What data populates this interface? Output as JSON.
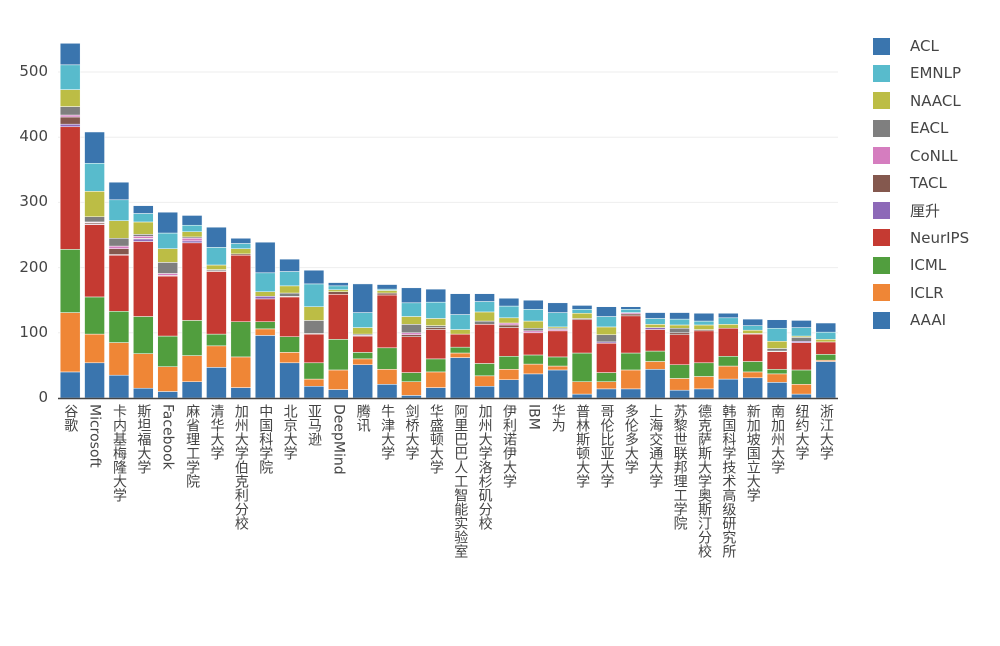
{
  "chart_data": {
    "type": "bar",
    "stacked": true,
    "title": "",
    "xlabel": "",
    "ylabel": "",
    "ylim": [
      0,
      570
    ],
    "yticks": [
      0,
      100,
      200,
      300,
      400,
      500
    ],
    "grid": true,
    "legend_position": "right",
    "categories": [
      "谷歌",
      "Microsoft",
      "卡内基梅隆大学",
      "斯坦福大学",
      "Facebook",
      "麻省理工学院",
      "清华大学",
      "加州大学伯克利分校",
      "中国科学院",
      "北京大学",
      "亚马逊",
      "DeepMind",
      "腾讯",
      "牛津大学",
      "剑桥大学",
      "华盛顿大学",
      "阿里巴巴人工智能实验室",
      "加州大学洛杉矶分校",
      "伊利诺伊大学",
      "IBM",
      "华为",
      "普林斯顿大学",
      "哥伦比亚大学",
      "多伦多大学",
      "上海交通大学",
      "苏黎世联邦理工学院",
      "德克萨斯大学奥斯汀分校",
      "韩国科学技术高级研究所",
      "新加坡国立大学",
      "南加州大学",
      "纽约大学",
      "浙江大学"
    ],
    "series": [
      {
        "name": "AAAI",
        "color": "#3a75ae",
        "values": [
          40,
          54,
          35,
          15,
          10,
          25,
          47,
          16,
          96,
          54,
          18,
          13,
          51,
          21,
          4,
          16,
          62,
          18,
          28,
          37,
          43,
          6,
          14,
          14,
          44,
          12,
          14,
          29,
          31,
          24,
          6,
          56
        ]
      },
      {
        "name": "ICLR",
        "color": "#ef8636",
        "values": [
          91,
          44,
          50,
          53,
          38,
          40,
          33,
          47,
          10,
          16,
          11,
          30,
          9,
          23,
          21,
          24,
          7,
          16,
          16,
          15,
          6,
          19,
          11,
          29,
          12,
          18,
          19,
          20,
          9,
          13,
          15,
          2
        ]
      },
      {
        "name": "ICML",
        "color": "#519e3e",
        "values": [
          97,
          57,
          48,
          57,
          47,
          54,
          18,
          54,
          11,
          24,
          25,
          47,
          10,
          33,
          14,
          20,
          9,
          19,
          20,
          14,
          14,
          44,
          14,
          26,
          16,
          21,
          21,
          15,
          16,
          7,
          22,
          9
        ]
      },
      {
        "name": "NeurIPS",
        "color": "#c53a32",
        "values": [
          188,
          111,
          86,
          115,
          92,
          119,
          96,
          102,
          35,
          61,
          44,
          69,
          25,
          81,
          55,
          45,
          20,
          60,
          44,
          34,
          40,
          51,
          45,
          57,
          33,
          46,
          49,
          43,
          42,
          27,
          42,
          19
        ]
      },
      {
        "name": "厘升",
        "color": "#8d69b8",
        "values": [
          4,
          1,
          1,
          4,
          0,
          3,
          0,
          0,
          4,
          0,
          0,
          0,
          1,
          0,
          0,
          0,
          0,
          0,
          0,
          0,
          0,
          0,
          2,
          0,
          3,
          0,
          0,
          0,
          0,
          0,
          2,
          0
        ]
      },
      {
        "name": "TACL",
        "color": "#84584e",
        "values": [
          11,
          2,
          9,
          1,
          1,
          0,
          1,
          2,
          0,
          1,
          1,
          4,
          0,
          3,
          3,
          3,
          0,
          0,
          4,
          0,
          0,
          2,
          0,
          3,
          0,
          3,
          2,
          0,
          1,
          1,
          0,
          0
        ]
      },
      {
        "name": "CoNLL",
        "color": "#d57dbf",
        "values": [
          3,
          1,
          4,
          3,
          3,
          4,
          0,
          0,
          0,
          0,
          0,
          0,
          0,
          0,
          3,
          0,
          0,
          0,
          3,
          3,
          2,
          0,
          0,
          2,
          0,
          0,
          0,
          0,
          0,
          0,
          0,
          0
        ]
      },
      {
        "name": "EACL",
        "color": "#7f7f7f",
        "values": [
          13,
          8,
          12,
          3,
          17,
          2,
          2,
          0,
          0,
          5,
          20,
          0,
          2,
          0,
          13,
          3,
          0,
          5,
          0,
          4,
          2,
          0,
          11,
          0,
          0,
          7,
          0,
          0,
          0,
          4,
          6,
          0
        ]
      },
      {
        "name": "NAACL",
        "color": "#bcbd45",
        "values": [
          26,
          39,
          27,
          19,
          21,
          8,
          7,
          8,
          7,
          11,
          21,
          3,
          10,
          4,
          12,
          11,
          7,
          14,
          8,
          11,
          2,
          8,
          12,
          0,
          5,
          5,
          7,
          6,
          5,
          11,
          2,
          4
        ]
      },
      {
        "name": "EMNLP",
        "color": "#58bbcc",
        "values": [
          38,
          43,
          32,
          13,
          24,
          10,
          27,
          8,
          29,
          22,
          35,
          6,
          23,
          2,
          21,
          25,
          23,
          16,
          18,
          18,
          22,
          6,
          16,
          5,
          9,
          9,
          6,
          10,
          7,
          20,
          13,
          11
        ]
      },
      {
        "name": "ACL",
        "color": "#3a75ae",
        "values": [
          33,
          48,
          27,
          12,
          32,
          15,
          31,
          8,
          47,
          19,
          21,
          5,
          44,
          7,
          23,
          20,
          32,
          12,
          12,
          14,
          15,
          6,
          15,
          4,
          9,
          10,
          12,
          7,
          10,
          13,
          11,
          14
        ]
      }
    ]
  }
}
